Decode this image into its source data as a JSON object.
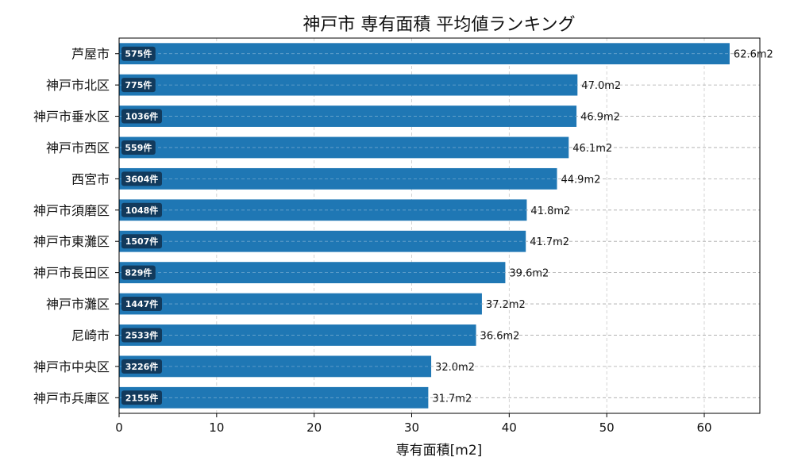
{
  "chart_data": {
    "type": "bar",
    "orientation": "horizontal",
    "title": "神戸市 専有面積 平均値ランキング",
    "xlabel": "専有面積[m2]",
    "ylabel": "",
    "xlim": [
      0,
      65.7
    ],
    "xticks": [
      0,
      10,
      20,
      30,
      40,
      50,
      60
    ],
    "grid": true,
    "value_suffix": "m2",
    "categories": [
      "芦屋市",
      "神戸市北区",
      "神戸市垂水区",
      "神戸市西区",
      "西宮市",
      "神戸市須磨区",
      "神戸市東灘区",
      "神戸市長田区",
      "神戸市灘区",
      "尼崎市",
      "神戸市中央区",
      "神戸市兵庫区"
    ],
    "values": [
      62.6,
      47.0,
      46.9,
      46.1,
      44.9,
      41.8,
      41.7,
      39.6,
      37.2,
      36.6,
      32.0,
      31.7
    ],
    "counts": [
      "575件",
      "775件",
      "1036件",
      "559件",
      "3604件",
      "1048件",
      "1507件",
      "829件",
      "1447件",
      "2533件",
      "3226件",
      "2155件"
    ],
    "bar_color": "#1f77b4",
    "count_badge_color": "#123a5c"
  }
}
